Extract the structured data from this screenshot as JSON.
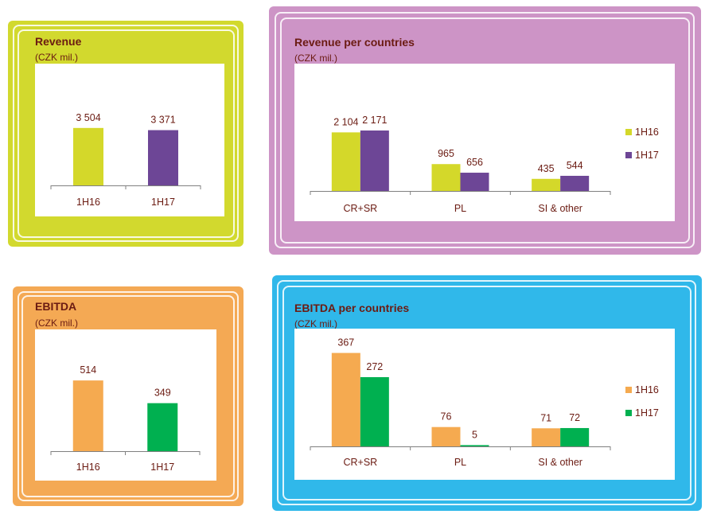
{
  "colors": {
    "lime": "#d4d82a",
    "purple": "#6d4696",
    "orange": "#f5aa50",
    "green": "#00b050",
    "frame_revenue": "#d2d92e",
    "frame_revenue_countries": "#cd94c6",
    "frame_ebitda": "#f4a954",
    "frame_ebitda_countries": "#30b8ea",
    "label": "#6b1b12",
    "axis": "#808080"
  },
  "chart_data": [
    {
      "id": "revenue",
      "type": "bar",
      "title": "Revenue",
      "subtitle": "(CZK mil.)",
      "categories": [
        "1H16",
        "1H17"
      ],
      "values": [
        3504,
        3371
      ],
      "value_labels": [
        "3 504",
        "3 371"
      ],
      "bar_colors": [
        "#d4d82a",
        "#6d4696"
      ],
      "ylim": [
        0,
        5000
      ],
      "grid": false
    },
    {
      "id": "revenue_countries",
      "type": "bar",
      "title": "Revenue per countries",
      "subtitle": "(CZK mil.)",
      "categories": [
        "CR+SR",
        "PL",
        "SI & other"
      ],
      "series": [
        {
          "name": "1H16",
          "color": "#d4d82a",
          "values": [
            2104,
            965,
            435
          ],
          "value_labels": [
            "2 104",
            "965",
            "435"
          ]
        },
        {
          "name": "1H17",
          "color": "#6d4696",
          "values": [
            2171,
            656,
            544
          ],
          "value_labels": [
            "2 171",
            "656",
            "544"
          ]
        }
      ],
      "ylim": [
        0,
        3000
      ],
      "legend": "right",
      "grid": false
    },
    {
      "id": "ebitda",
      "type": "bar",
      "title": "EBITDA",
      "subtitle": "(CZK mil.)",
      "categories": [
        "1H16",
        "1H17"
      ],
      "values": [
        514,
        349
      ],
      "value_labels": [
        "514",
        "349"
      ],
      "bar_colors": [
        "#f5aa50",
        "#00b050"
      ],
      "ylim": [
        0,
        700
      ],
      "grid": false
    },
    {
      "id": "ebitda_countries",
      "type": "bar",
      "title": "EBITDA per countries",
      "subtitle": "(CZK mil.)",
      "categories": [
        "CR+SR",
        "PL",
        "SI & other"
      ],
      "series": [
        {
          "name": "1H16",
          "color": "#f5aa50",
          "values": [
            367,
            76,
            71
          ],
          "value_labels": [
            "367",
            "76",
            "71"
          ]
        },
        {
          "name": "1H17",
          "color": "#00b050",
          "values": [
            272,
            5,
            72
          ],
          "value_labels": [
            "272",
            "5",
            "72"
          ]
        }
      ],
      "ylim": [
        0,
        400
      ],
      "legend": "right",
      "grid": false
    }
  ]
}
